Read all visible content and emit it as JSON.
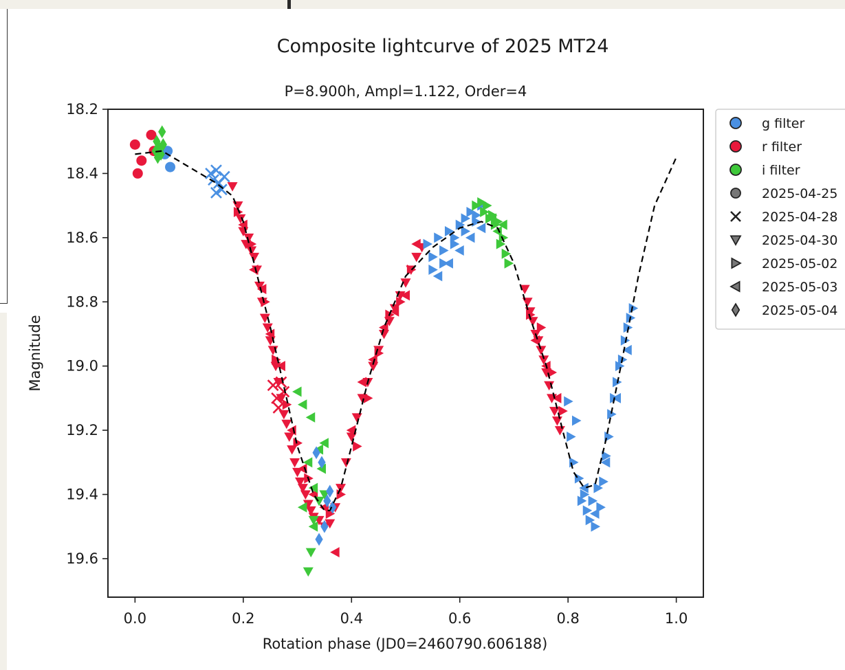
{
  "chart_data": {
    "type": "scatter",
    "title": "Composite lightcurve of 2025 MT24",
    "subtitle": "P=8.900h, Ampl=1.122, Order=4",
    "xlabel": "Rotation phase (JD0=2460790.606188)",
    "ylabel": "Magnitude",
    "xlim": [
      -0.05,
      1.05
    ],
    "ylim": [
      19.72,
      18.2
    ],
    "y_inverted": true,
    "xticks": [
      "0.0",
      "0.2",
      "0.4",
      "0.6",
      "0.8",
      "1.0"
    ],
    "yticks": [
      "18.2",
      "18.4",
      "18.6",
      "18.8",
      "19.0",
      "19.2",
      "19.4",
      "19.6"
    ],
    "grid": false,
    "legend_position": "outside-right",
    "filter_colors": {
      "g": "#4a90e2",
      "r": "#e8193c",
      "i": "#3ec83a"
    },
    "legend": {
      "filters": [
        {
          "key": "g",
          "label": "g filter"
        },
        {
          "key": "r",
          "label": "r filter"
        },
        {
          "key": "i",
          "label": "i filter"
        }
      ],
      "sessions": [
        {
          "marker": "circle",
          "label": "2025-04-25"
        },
        {
          "marker": "x",
          "label": "2025-04-28"
        },
        {
          "marker": "triangle-down",
          "label": "2025-04-30"
        },
        {
          "marker": "triangle-right",
          "label": "2025-05-02"
        },
        {
          "marker": "triangle-left",
          "label": "2025-05-03"
        },
        {
          "marker": "diamond",
          "label": "2025-05-04"
        }
      ]
    },
    "fit_curve": {
      "style": "dashed",
      "color": "#000000",
      "x": [
        0.0,
        0.05,
        0.1,
        0.15,
        0.18,
        0.2,
        0.22,
        0.25,
        0.28,
        0.3,
        0.33,
        0.35,
        0.36,
        0.38,
        0.4,
        0.43,
        0.46,
        0.5,
        0.55,
        0.6,
        0.64,
        0.67,
        0.7,
        0.73,
        0.76,
        0.79,
        0.81,
        0.83,
        0.85,
        0.87,
        0.9,
        0.93,
        0.96,
        1.0
      ],
      "y": [
        18.34,
        18.33,
        18.38,
        18.43,
        18.47,
        18.55,
        18.68,
        18.88,
        19.1,
        19.25,
        19.4,
        19.45,
        19.45,
        19.38,
        19.25,
        19.05,
        18.88,
        18.72,
        18.63,
        18.57,
        18.55,
        18.57,
        18.68,
        18.85,
        19.0,
        19.2,
        19.33,
        19.38,
        19.37,
        19.23,
        18.98,
        18.72,
        18.5,
        18.35
      ]
    },
    "series": [
      {
        "filter": "r",
        "marker": "circle",
        "x": [
          0.0,
          0.005,
          0.012,
          0.035,
          0.03
        ],
        "y": [
          18.31,
          18.4,
          18.36,
          18.33,
          18.28
        ]
      },
      {
        "filter": "g",
        "marker": "circle",
        "x": [
          0.06,
          0.065,
          0.055
        ],
        "y": [
          18.33,
          18.38,
          18.34
        ]
      },
      {
        "filter": "i",
        "marker": "diamond",
        "x": [
          0.04,
          0.045,
          0.05,
          0.042,
          0.048,
          0.052,
          0.038
        ],
        "y": [
          18.3,
          18.32,
          18.27,
          18.35,
          18.34,
          18.31,
          18.33
        ]
      },
      {
        "filter": "g",
        "marker": "x",
        "x": [
          0.14,
          0.15,
          0.155,
          0.16,
          0.145,
          0.165,
          0.15
        ],
        "y": [
          18.4,
          18.39,
          18.43,
          18.45,
          18.42,
          18.41,
          18.46
        ]
      },
      {
        "filter": "r",
        "marker": "x",
        "x": [
          0.255,
          0.262,
          0.27,
          0.265,
          0.275
        ],
        "y": [
          19.06,
          19.1,
          19.05,
          19.13,
          19.08
        ]
      },
      {
        "filter": "r",
        "marker": "triangle-down",
        "x": [
          0.18,
          0.19,
          0.195,
          0.2,
          0.205,
          0.21,
          0.215,
          0.22,
          0.225,
          0.23,
          0.235,
          0.24,
          0.245,
          0.25,
          0.255,
          0.26,
          0.265,
          0.27,
          0.275,
          0.28,
          0.285,
          0.29,
          0.295,
          0.3,
          0.305,
          0.31,
          0.315,
          0.32,
          0.325,
          0.33,
          0.34,
          0.35,
          0.36,
          0.37,
          0.38,
          0.39,
          0.4,
          0.41,
          0.42,
          0.43,
          0.44,
          0.45,
          0.46,
          0.47,
          0.48,
          0.49,
          0.5,
          0.51,
          0.52,
          0.53,
          0.72,
          0.725,
          0.73,
          0.735,
          0.74,
          0.745,
          0.75,
          0.755,
          0.76,
          0.765,
          0.77,
          0.775,
          0.78,
          0.785
        ],
        "y": [
          18.44,
          18.5,
          18.54,
          18.58,
          18.62,
          18.6,
          18.64,
          18.66,
          18.7,
          18.75,
          18.8,
          18.85,
          18.88,
          18.92,
          18.95,
          19.0,
          19.05,
          19.1,
          19.15,
          19.18,
          19.22,
          19.26,
          19.3,
          19.33,
          19.36,
          19.38,
          19.4,
          19.43,
          19.45,
          19.47,
          19.48,
          19.5,
          19.49,
          19.44,
          19.38,
          19.3,
          19.22,
          19.16,
          19.1,
          19.05,
          19.0,
          18.95,
          18.9,
          18.86,
          18.82,
          18.78,
          18.74,
          18.7,
          18.66,
          18.63,
          18.76,
          18.8,
          18.83,
          18.86,
          18.9,
          18.92,
          18.95,
          18.98,
          19.02,
          19.06,
          19.1,
          19.14,
          19.17,
          19.2
        ]
      },
      {
        "filter": "r",
        "marker": "triangle-left",
        "x": [
          0.2,
          0.22,
          0.235,
          0.25,
          0.27,
          0.29,
          0.31,
          0.33,
          0.35,
          0.37,
          0.4,
          0.42,
          0.44,
          0.46,
          0.48,
          0.5,
          0.52,
          0.74,
          0.76,
          0.78
        ],
        "y": [
          18.56,
          18.7,
          18.76,
          18.9,
          19.0,
          19.2,
          19.32,
          19.4,
          19.44,
          19.58,
          19.2,
          19.05,
          18.98,
          18.88,
          18.83,
          18.78,
          18.62,
          18.92,
          19.0,
          19.1
        ]
      },
      {
        "filter": "r",
        "marker": "triangle-right",
        "x": [
          0.19,
          0.215,
          0.24,
          0.26,
          0.28,
          0.3,
          0.32,
          0.36,
          0.38,
          0.41,
          0.43,
          0.45,
          0.47,
          0.49,
          0.51,
          0.73,
          0.75,
          0.77,
          0.79
        ],
        "y": [
          18.52,
          18.62,
          18.8,
          18.98,
          19.12,
          19.24,
          19.35,
          19.46,
          19.4,
          19.25,
          19.1,
          18.96,
          18.84,
          18.8,
          18.7,
          18.84,
          18.88,
          19.02,
          19.14
        ]
      },
      {
        "filter": "g",
        "marker": "triangle-right",
        "x": [
          0.54,
          0.55,
          0.56,
          0.57,
          0.58,
          0.59,
          0.6,
          0.61,
          0.62,
          0.63,
          0.64,
          0.55,
          0.57,
          0.59,
          0.61,
          0.63,
          0.8,
          0.805,
          0.81,
          0.815,
          0.82,
          0.825,
          0.83,
          0.835,
          0.84,
          0.845,
          0.85,
          0.855,
          0.86,
          0.865,
          0.87,
          0.875,
          0.88,
          0.885,
          0.89,
          0.895,
          0.9,
          0.905,
          0.91,
          0.915,
          0.92
        ],
        "y": [
          18.62,
          18.66,
          18.6,
          18.64,
          18.58,
          18.6,
          18.56,
          18.54,
          18.52,
          18.55,
          18.5,
          18.7,
          18.68,
          18.62,
          18.58,
          18.53,
          19.11,
          19.22,
          19.3,
          19.17,
          19.35,
          19.42,
          19.4,
          19.45,
          19.48,
          19.42,
          19.5,
          19.38,
          19.44,
          19.36,
          19.28,
          19.22,
          19.15,
          19.1,
          19.05,
          19.0,
          18.98,
          18.92,
          18.88,
          18.85,
          18.82
        ]
      },
      {
        "filter": "g",
        "marker": "triangle-left",
        "x": [
          0.56,
          0.58,
          0.6,
          0.62,
          0.64,
          0.83,
          0.85,
          0.87,
          0.89,
          0.91
        ],
        "y": [
          18.72,
          18.68,
          18.64,
          18.6,
          18.57,
          19.38,
          19.46,
          19.3,
          19.1,
          18.95
        ]
      },
      {
        "filter": "i",
        "marker": "triangle-right",
        "x": [
          0.63,
          0.64,
          0.645,
          0.65,
          0.655,
          0.66,
          0.665,
          0.67,
          0.675,
          0.68,
          0.685,
          0.69
        ],
        "y": [
          18.5,
          18.49,
          18.52,
          18.5,
          18.54,
          18.53,
          18.56,
          18.55,
          18.62,
          18.6,
          18.65,
          18.68
        ]
      },
      {
        "filter": "i",
        "marker": "triangle-left",
        "x": [
          0.3,
          0.31,
          0.32,
          0.325,
          0.33,
          0.34,
          0.35,
          0.31,
          0.33,
          0.345,
          0.66,
          0.67,
          0.68
        ],
        "y": [
          19.08,
          19.12,
          19.3,
          19.16,
          19.38,
          19.26,
          19.24,
          19.44,
          19.5,
          19.32,
          18.54,
          18.58,
          18.56
        ]
      },
      {
        "filter": "i",
        "marker": "triangle-down",
        "x": [
          0.32,
          0.325,
          0.33,
          0.34,
          0.35
        ],
        "y": [
          19.64,
          19.58,
          19.48,
          19.42,
          19.4
        ]
      },
      {
        "filter": "g",
        "marker": "diamond",
        "x": [
          0.335,
          0.34,
          0.35,
          0.355,
          0.36,
          0.365,
          0.345
        ],
        "y": [
          19.27,
          19.54,
          19.5,
          19.42,
          19.39,
          19.44,
          19.3
        ]
      }
    ]
  }
}
